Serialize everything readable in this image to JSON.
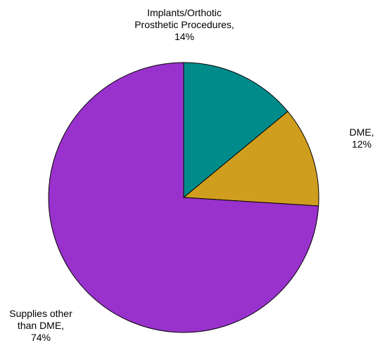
{
  "chart_data": {
    "type": "pie",
    "title": "",
    "slices": [
      {
        "label_lines": [
          "Implants/Orthotic",
          "Prosthetic Procedures,",
          "14%"
        ],
        "category": "Implants/Orthotic Prosthetic Procedures",
        "value": 14,
        "color": "#008B8B"
      },
      {
        "label_lines": [
          "DME,",
          "12%"
        ],
        "category": "DME",
        "value": 12,
        "color": "#D09E1F"
      },
      {
        "label_lines": [
          "Supplies other",
          "than DME,",
          "74%"
        ],
        "category": "Supplies other than DME",
        "value": 74,
        "color": "#9932CC"
      }
    ],
    "start_angle": "12 o'clock",
    "direction": "clockwise",
    "slice_outline_color": "#000000",
    "legend": "none"
  }
}
